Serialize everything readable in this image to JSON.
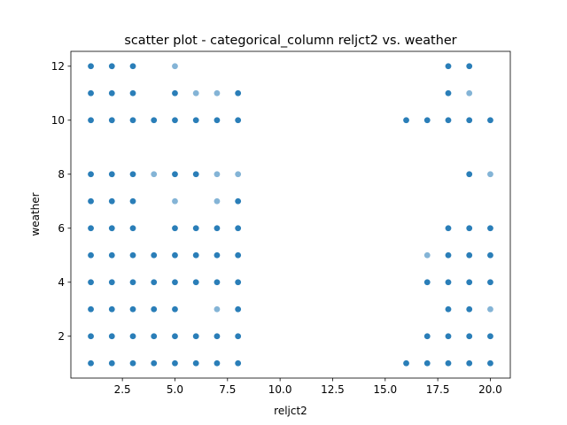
{
  "chart_data": {
    "type": "scatter",
    "title": "scatter plot - categorical_column reljct2 vs. weather",
    "xlabel": "reljct2",
    "ylabel": "weather",
    "xlim": [
      0.05,
      20.95
    ],
    "ylim": [
      0.45,
      12.55
    ],
    "xticks": [
      2.5,
      5.0,
      7.5,
      10.0,
      12.5,
      15.0,
      17.5,
      20.0
    ],
    "xtick_labels": [
      "2.5",
      "5.0",
      "7.5",
      "10.0",
      "12.5",
      "15.0",
      "17.5",
      "20.0"
    ],
    "yticks": [
      2,
      4,
      6,
      8,
      10,
      12
    ],
    "ytick_labels": [
      "2",
      "4",
      "6",
      "8",
      "10",
      "12"
    ],
    "grid": false,
    "marker_color": "#1f77b4",
    "series": [
      {
        "points": [
          [
            1,
            1
          ],
          [
            1,
            2
          ],
          [
            1,
            3
          ],
          [
            1,
            4
          ],
          [
            1,
            5
          ],
          [
            1,
            6
          ],
          [
            1,
            7
          ],
          [
            1,
            8
          ],
          [
            1,
            10
          ],
          [
            1,
            11
          ],
          [
            1,
            12
          ],
          [
            2,
            1
          ],
          [
            2,
            2
          ],
          [
            2,
            3
          ],
          [
            2,
            4
          ],
          [
            2,
            5
          ],
          [
            2,
            6
          ],
          [
            2,
            7
          ],
          [
            2,
            8
          ],
          [
            2,
            10
          ],
          [
            2,
            11
          ],
          [
            2,
            12
          ],
          [
            3,
            1
          ],
          [
            3,
            2
          ],
          [
            3,
            3
          ],
          [
            3,
            4
          ],
          [
            3,
            5
          ],
          [
            3,
            6
          ],
          [
            3,
            7
          ],
          [
            3,
            8
          ],
          [
            3,
            10
          ],
          [
            3,
            11
          ],
          [
            3,
            12
          ],
          [
            4,
            1
          ],
          [
            4,
            2
          ],
          [
            4,
            3
          ],
          [
            4,
            4
          ],
          [
            4,
            5
          ],
          [
            4,
            8
          ],
          [
            4,
            10
          ],
          [
            5,
            1
          ],
          [
            5,
            2
          ],
          [
            5,
            3
          ],
          [
            5,
            4
          ],
          [
            5,
            5
          ],
          [
            5,
            6
          ],
          [
            5,
            7
          ],
          [
            5,
            8
          ],
          [
            5,
            10
          ],
          [
            5,
            11
          ],
          [
            5,
            12
          ],
          [
            6,
            1
          ],
          [
            6,
            2
          ],
          [
            6,
            4
          ],
          [
            6,
            5
          ],
          [
            6,
            6
          ],
          [
            6,
            8
          ],
          [
            6,
            10
          ],
          [
            6,
            11
          ],
          [
            7,
            1
          ],
          [
            7,
            2
          ],
          [
            7,
            3
          ],
          [
            7,
            4
          ],
          [
            7,
            5
          ],
          [
            7,
            6
          ],
          [
            7,
            7
          ],
          [
            7,
            8
          ],
          [
            7,
            10
          ],
          [
            7,
            11
          ],
          [
            8,
            1
          ],
          [
            8,
            2
          ],
          [
            8,
            3
          ],
          [
            8,
            4
          ],
          [
            8,
            5
          ],
          [
            8,
            6
          ],
          [
            8,
            7
          ],
          [
            8,
            8
          ],
          [
            8,
            10
          ],
          [
            8,
            11
          ],
          [
            16,
            1
          ],
          [
            16,
            10
          ],
          [
            17,
            1
          ],
          [
            17,
            2
          ],
          [
            17,
            4
          ],
          [
            17,
            5
          ],
          [
            17,
            10
          ],
          [
            18,
            1
          ],
          [
            18,
            2
          ],
          [
            18,
            3
          ],
          [
            18,
            4
          ],
          [
            18,
            5
          ],
          [
            18,
            6
          ],
          [
            18,
            10
          ],
          [
            18,
            11
          ],
          [
            18,
            12
          ],
          [
            19,
            1
          ],
          [
            19,
            2
          ],
          [
            19,
            3
          ],
          [
            19,
            4
          ],
          [
            19,
            5
          ],
          [
            19,
            6
          ],
          [
            19,
            8
          ],
          [
            19,
            10
          ],
          [
            19,
            11
          ],
          [
            19,
            12
          ],
          [
            20,
            1
          ],
          [
            20,
            2
          ],
          [
            20,
            3
          ],
          [
            20,
            4
          ],
          [
            20,
            5
          ],
          [
            20,
            6
          ],
          [
            20,
            8
          ],
          [
            20,
            10
          ]
        ],
        "light_points": [
          [
            4,
            8
          ],
          [
            5,
            7
          ],
          [
            5,
            12
          ],
          [
            6,
            11
          ],
          [
            7,
            3
          ],
          [
            7,
            7
          ],
          [
            7,
            8
          ],
          [
            7,
            11
          ],
          [
            8,
            8
          ],
          [
            17,
            5
          ],
          [
            19,
            11
          ],
          [
            20,
            3
          ],
          [
            20,
            8
          ]
        ]
      }
    ]
  }
}
